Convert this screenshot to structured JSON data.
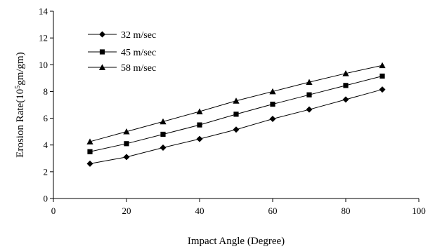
{
  "chart_data": {
    "type": "line",
    "title": "",
    "xlabel": "Impact Angle (Degree)",
    "ylabel": "Erosion Rate(10",
    "ylabel_sup": "5",
    "ylabel_rest": "gm/gm)",
    "xlim": [
      0,
      100
    ],
    "ylim": [
      0,
      14
    ],
    "x_ticks": [
      0,
      20,
      40,
      60,
      80,
      100
    ],
    "y_ticks": [
      0,
      2,
      4,
      6,
      8,
      10,
      12,
      14
    ],
    "grid": false,
    "legend_position": "top-left",
    "x": [
      10,
      20,
      30,
      40,
      50,
      60,
      70,
      80,
      90
    ],
    "series": [
      {
        "name": "32 m/sec",
        "marker": "diamond",
        "values": [
          2.6,
          3.1,
          3.8,
          4.45,
          5.15,
          5.95,
          6.65,
          7.4,
          8.15
        ]
      },
      {
        "name": "45 m/sec",
        "marker": "square",
        "values": [
          3.5,
          4.1,
          4.8,
          5.5,
          6.3,
          7.05,
          7.75,
          8.45,
          9.15
        ]
      },
      {
        "name": "58 m/sec",
        "marker": "triangle",
        "values": [
          4.25,
          5.0,
          5.75,
          6.5,
          7.3,
          8.0,
          8.7,
          9.35,
          9.95
        ]
      }
    ]
  }
}
